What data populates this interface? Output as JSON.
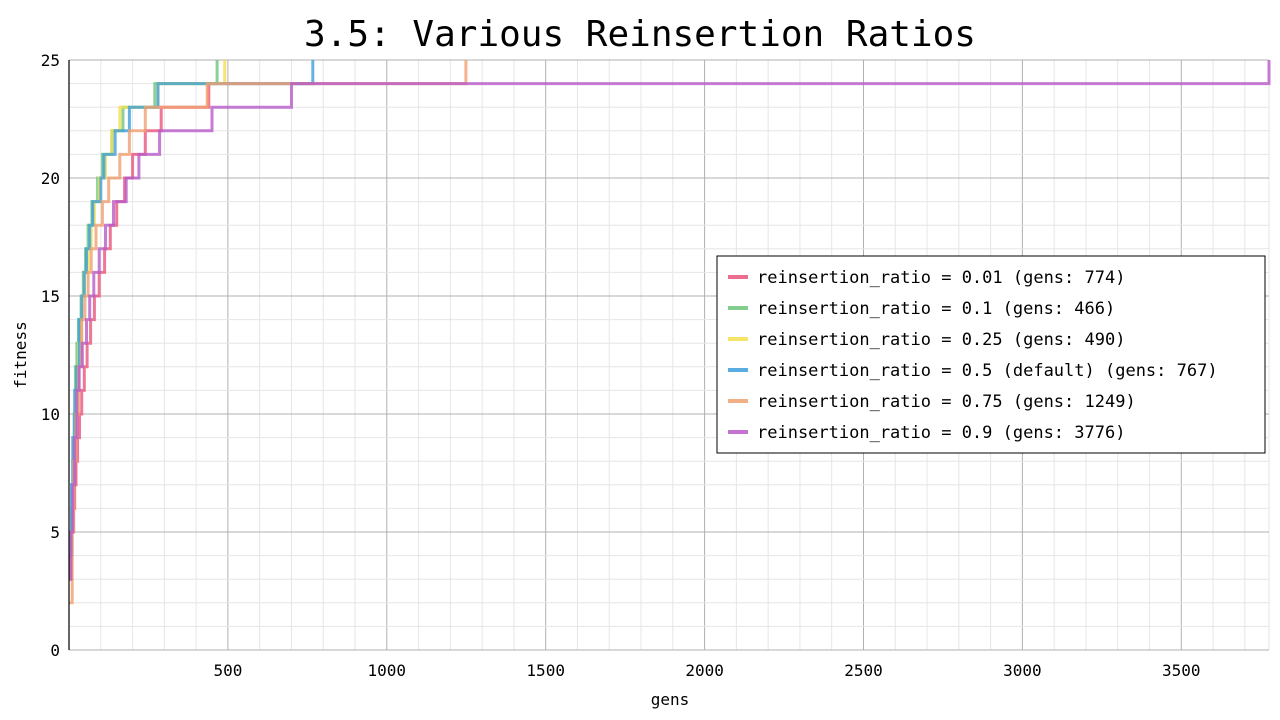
{
  "chart_data": {
    "type": "line",
    "step": true,
    "title": "3.5: Various Reinsertion Ratios",
    "xlabel": "gens",
    "ylabel": "fitness",
    "xlim": [
      0,
      3776
    ],
    "ylim": [
      0,
      25
    ],
    "xticks": [
      500,
      1000,
      1500,
      2000,
      2500,
      3000,
      3500
    ],
    "yticks": [
      0,
      5,
      10,
      15,
      20,
      25
    ],
    "x_minor_step": 100,
    "y_minor_step": 1,
    "grid": true,
    "legend_position": "right",
    "series": [
      {
        "name": "reinsertion_ratio = 0.01 (gens: 774)",
        "color": "#e8557b",
        "points": [
          [
            0,
            3
          ],
          [
            5,
            4
          ],
          [
            9,
            5
          ],
          [
            13,
            6
          ],
          [
            18,
            7
          ],
          [
            22,
            8
          ],
          [
            27,
            9
          ],
          [
            33,
            10
          ],
          [
            40,
            11
          ],
          [
            48,
            12
          ],
          [
            57,
            13
          ],
          [
            68,
            14
          ],
          [
            80,
            15
          ],
          [
            95,
            16
          ],
          [
            112,
            17
          ],
          [
            130,
            18
          ],
          [
            150,
            19
          ],
          [
            175,
            20
          ],
          [
            200,
            21
          ],
          [
            240,
            22
          ],
          [
            290,
            23
          ],
          [
            340,
            23
          ],
          [
            440,
            24
          ],
          [
            774,
            24
          ]
        ]
      },
      {
        "name": "reinsertion_ratio = 0.1 (gens: 466)",
        "color": "#6cc57e",
        "points": [
          [
            0,
            4
          ],
          [
            8,
            6
          ],
          [
            12,
            8
          ],
          [
            16,
            10
          ],
          [
            20,
            12
          ],
          [
            25,
            13
          ],
          [
            30,
            14
          ],
          [
            38,
            15
          ],
          [
            45,
            16
          ],
          [
            52,
            17
          ],
          [
            60,
            18
          ],
          [
            72,
            19
          ],
          [
            90,
            20
          ],
          [
            105,
            21
          ],
          [
            135,
            22
          ],
          [
            170,
            23
          ],
          [
            270,
            24
          ],
          [
            466,
            25
          ]
        ]
      },
      {
        "name": "reinsertion_ratio = 0.25 (gens: 490)",
        "color": "#f5df4d",
        "points": [
          [
            0,
            3
          ],
          [
            8,
            6
          ],
          [
            13,
            9
          ],
          [
            20,
            11
          ],
          [
            30,
            13
          ],
          [
            40,
            15
          ],
          [
            48,
            16
          ],
          [
            60,
            17
          ],
          [
            70,
            18
          ],
          [
            80,
            19
          ],
          [
            95,
            20
          ],
          [
            115,
            21
          ],
          [
            135,
            22
          ],
          [
            160,
            23
          ],
          [
            280,
            24
          ],
          [
            490,
            25
          ]
        ]
      },
      {
        "name": "reinsertion_ratio = 0.5 (default) (gens: 767)",
        "color": "#3d9fdc",
        "points": [
          [
            0,
            4
          ],
          [
            8,
            7
          ],
          [
            12,
            9
          ],
          [
            18,
            11
          ],
          [
            24,
            12
          ],
          [
            32,
            14
          ],
          [
            40,
            15
          ],
          [
            48,
            16
          ],
          [
            55,
            17
          ],
          [
            65,
            18
          ],
          [
            75,
            19
          ],
          [
            100,
            20
          ],
          [
            110,
            21
          ],
          [
            145,
            22
          ],
          [
            190,
            23
          ],
          [
            280,
            24
          ],
          [
            767,
            25
          ]
        ]
      },
      {
        "name": "reinsertion_ratio = 0.75 (gens: 1249)",
        "color": "#f0a070",
        "points": [
          [
            0,
            2
          ],
          [
            10,
            5
          ],
          [
            15,
            8
          ],
          [
            22,
            10
          ],
          [
            30,
            12
          ],
          [
            40,
            14
          ],
          [
            50,
            15
          ],
          [
            60,
            16
          ],
          [
            70,
            17
          ],
          [
            85,
            18
          ],
          [
            105,
            19
          ],
          [
            125,
            20
          ],
          [
            160,
            21
          ],
          [
            190,
            22
          ],
          [
            240,
            23
          ],
          [
            435,
            24
          ],
          [
            1249,
            25
          ]
        ]
      },
      {
        "name": "reinsertion_ratio = 0.9 (gens: 3776)",
        "color": "#b85bc8",
        "points": [
          [
            0,
            3
          ],
          [
            6,
            5
          ],
          [
            12,
            7
          ],
          [
            18,
            9
          ],
          [
            25,
            11
          ],
          [
            32,
            12
          ],
          [
            42,
            13
          ],
          [
            55,
            14
          ],
          [
            65,
            15
          ],
          [
            78,
            16
          ],
          [
            95,
            17
          ],
          [
            115,
            18
          ],
          [
            140,
            19
          ],
          [
            180,
            20
          ],
          [
            220,
            21
          ],
          [
            285,
            22
          ],
          [
            450,
            23
          ],
          [
            700,
            24
          ],
          [
            3776,
            25
          ]
        ]
      }
    ]
  }
}
